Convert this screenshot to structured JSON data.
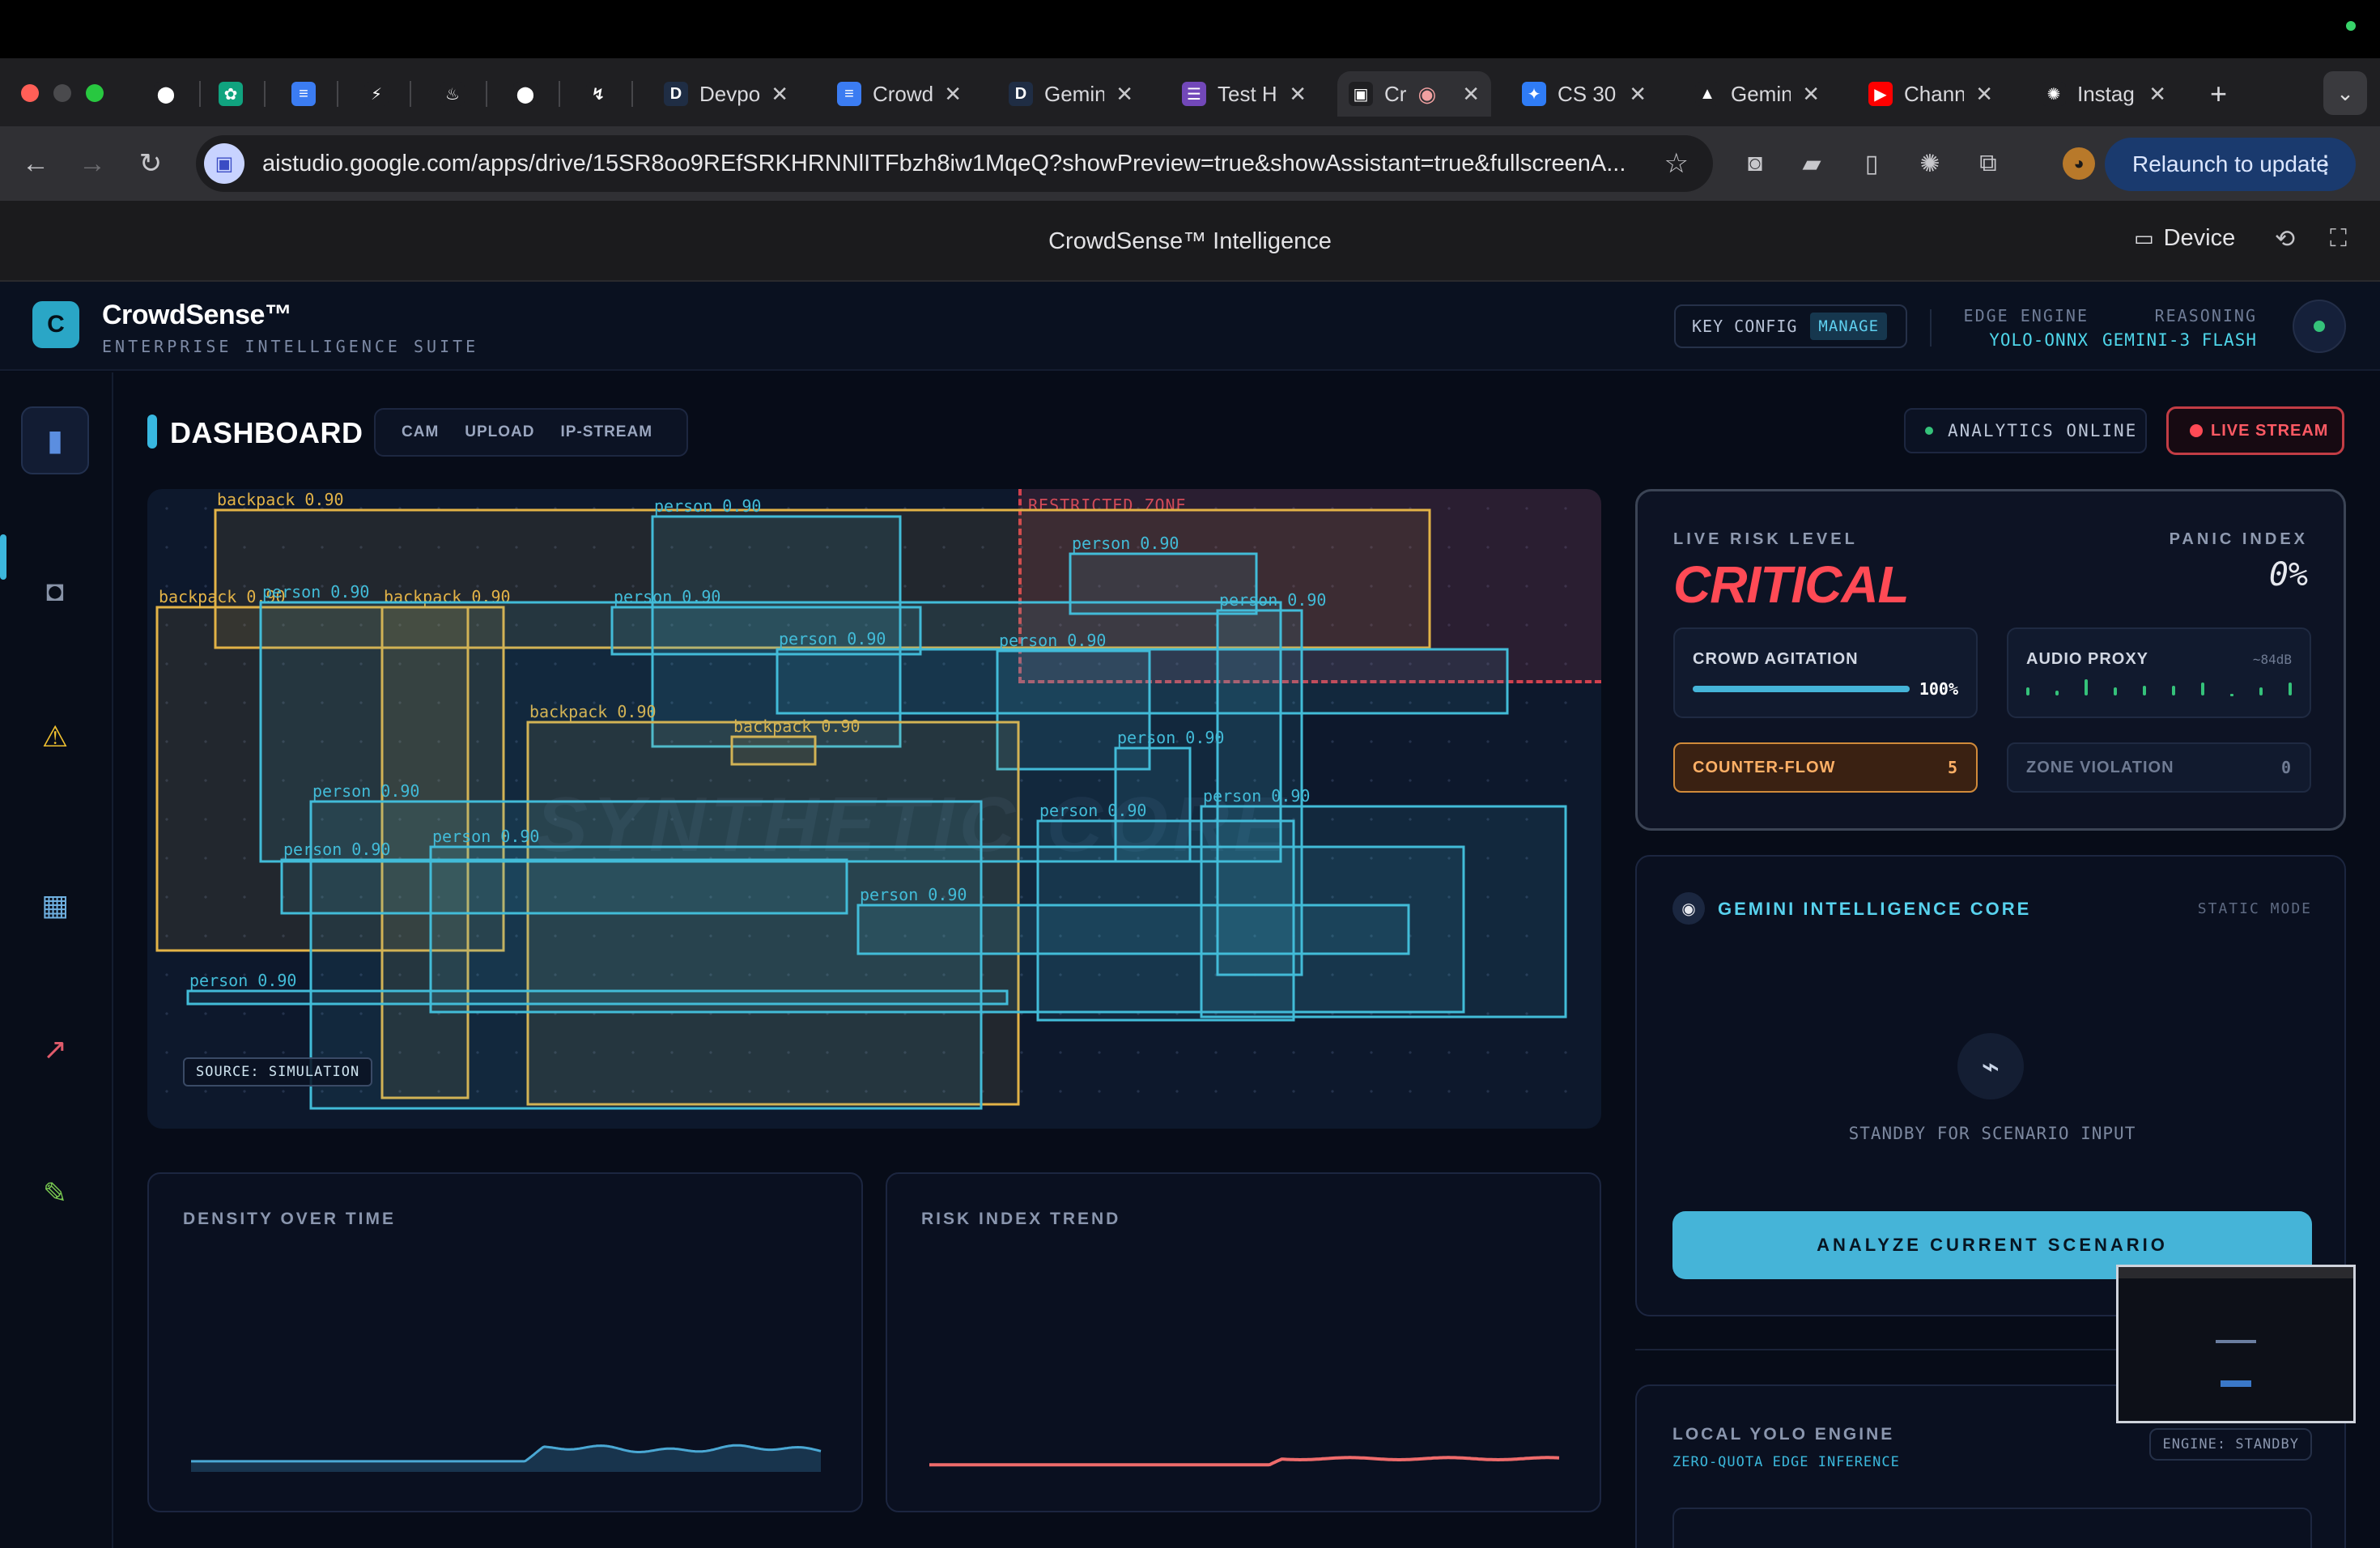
{
  "browser": {
    "tabs": [
      {
        "label": "",
        "icon": "github-icon"
      },
      {
        "label": "",
        "icon": "chatgpt-icon"
      },
      {
        "label": "",
        "icon": "docs-icon"
      },
      {
        "label": "",
        "icon": "bolt-icon"
      },
      {
        "label": "",
        "icon": "firebase-icon"
      },
      {
        "label": "",
        "icon": "github-icon"
      },
      {
        "label": "",
        "icon": "lightning-icon"
      },
      {
        "label": "Devpo",
        "icon": "devpost-icon"
      },
      {
        "label": "Crowd",
        "icon": "docs-icon"
      },
      {
        "label": "Gemin",
        "icon": "devpost-icon"
      },
      {
        "label": "Test H",
        "icon": "forms-icon"
      },
      {
        "label": "Cr",
        "icon": "aistudio-icon"
      },
      {
        "label": "CS 30",
        "icon": "messenger-icon"
      },
      {
        "label": "Gemin",
        "icon": "drive-icon"
      },
      {
        "label": "Chann",
        "icon": "youtube-icon"
      },
      {
        "label": "Instag",
        "icon": "openai-icon"
      }
    ],
    "new_tab_label": "+",
    "url": "aistudio.google.com/apps/drive/15SR8oo9REfSRKHRNNlITFbzh8iw1MqeQ?showPreview=true&showAssistant=true&fullscreenA...",
    "relaunch_label": "Relaunch to update"
  },
  "studio": {
    "title": "CrowdSense™ Intelligence",
    "device_label": "Device"
  },
  "app": {
    "logo_letter": "C",
    "brand": "CrowdSense™",
    "brand_sub": "ENTERPRISE INTELLIGENCE SUITE",
    "key_config": "KEY CONFIG",
    "manage": "MANAGE",
    "edge_engine_label": "EDGE ENGINE",
    "edge_engine_value": "YOLO-ONNX",
    "reasoning_label": "REASONING",
    "reasoning_value": "GEMINI-3 FLASH"
  },
  "sidebar": [
    "bar-chart-icon",
    "film-camera-icon",
    "warning-icon",
    "map-icon",
    "trend-icon",
    "pencil-icon"
  ],
  "dashboard": {
    "title": "DASHBOARD",
    "source_tabs": [
      "CAM",
      "UPLOAD",
      "IP-STREAM"
    ],
    "analytics_status": "ANALYTICS ONLINE",
    "live_stream": "LIVE STREAM",
    "watermark": "SYNTHETIC CORE",
    "restricted_zone": "RESTRICTED ZONE",
    "source_badge": "SOURCE: SIMULATION"
  },
  "detections": [
    {
      "label": "backpack 0.90",
      "cls": "backpack"
    },
    {
      "label": "person 0.90",
      "cls": "person"
    },
    {
      "label": "backpack 0.90",
      "cls": "backpack"
    },
    {
      "label": "backpack 0.90",
      "cls": "backpack"
    },
    {
      "label": "person 0.90",
      "cls": "person"
    },
    {
      "label": "person 0.90",
      "cls": "person"
    },
    {
      "label": "person 0.90",
      "cls": "person"
    },
    {
      "label": "person 0.90",
      "cls": "person"
    },
    {
      "label": "backpack 0.90",
      "cls": "backpack"
    },
    {
      "label": "backpack 0.90",
      "cls": "backpack"
    },
    {
      "label": "person 0.90",
      "cls": "person"
    },
    {
      "label": "person 0.90",
      "cls": "person"
    },
    {
      "label": "person 0.90",
      "cls": "person"
    },
    {
      "label": "person 0.90",
      "cls": "person"
    },
    {
      "label": "person 0.90",
      "cls": "person"
    },
    {
      "label": "person 0.90",
      "cls": "person"
    },
    {
      "label": "person 0.90",
      "cls": "person"
    },
    {
      "label": "person 0.90",
      "cls": "person"
    },
    {
      "label": "person 0.90",
      "cls": "person"
    },
    {
      "label": "person 0.90",
      "cls": "person"
    }
  ],
  "charts": {
    "density_title": "DENSITY OVER TIME",
    "risk_title": "RISK INDEX TREND"
  },
  "chart_data": [
    {
      "type": "area",
      "title": "DENSITY OVER TIME",
      "values": [
        0.06,
        0.06,
        0.06,
        0.06,
        0.06,
        0.06,
        0.06,
        0.06,
        0.06,
        0.06,
        0.06,
        0.06,
        0.06,
        0.06,
        0.06,
        0.06,
        0.06,
        0.06,
        0.06,
        0.06,
        0.06,
        0.06,
        0.06,
        0.06,
        0.06,
        0.06,
        0.06,
        0.06,
        0.06,
        0.06,
        0.06,
        0.06,
        0.06,
        0.06,
        0.06,
        0.06,
        0.06,
        0.06,
        0.06,
        0.06,
        0.06,
        0.06,
        0.06,
        0.06,
        0.06,
        0.06,
        0.06,
        0.06,
        0.06,
        0.06,
        0.06,
        0.06,
        0.06,
        0.06,
        0.06,
        0.06,
        0.06,
        0.06,
        0.06,
        0.06,
        0.06,
        0.06,
        0.06,
        0.06,
        0.06,
        0.06,
        0.06,
        0.06,
        0.06,
        0.06,
        0.06,
        0.06,
        0.06,
        0.06,
        0.06,
        0.06,
        0.06,
        0.06,
        0.06,
        0.06,
        0.06,
        0.06,
        0.06,
        0.06,
        0.06,
        0.06,
        0.06,
        0.06,
        0.06,
        0.06,
        0.06,
        0.06,
        0.06,
        0.06,
        0.06,
        0.06,
        0.06,
        0.06,
        0.06,
        0.06,
        0.06,
        0.06,
        0.06,
        0.06,
        0.06,
        0.06,
        0.06,
        0.06,
        0.06,
        0.06,
        0.06,
        0.06,
        0.06,
        0.06,
        0.06,
        0.06,
        0.06,
        0.06,
        0.06,
        0.06,
        0.06,
        0.06,
        0.06,
        0.06,
        0.06,
        0.06,
        0.06,
        0.06,
        0.06,
        0.06,
        0.06,
        0.06,
        0.06,
        0.06,
        0.06,
        0.06,
        0.06,
        0.06,
        0.06,
        0.06,
        0.06,
        0.06,
        0.06,
        0.06,
        0.06,
        0.06,
        0.06,
        0.06,
        0.06,
        0.06,
        0.06,
        0.06,
        0.06,
        0.06,
        0.06,
        0.06,
        0.06,
        0.06,
        0.06,
        0.06,
        0.06,
        0.06,
        0.06,
        0.06,
        0.06,
        0.06,
        0.06,
        0.06,
        0.06,
        0.06,
        0.06,
        0.06,
        0.06,
        0.06,
        0.06,
        0.06,
        0.06,
        0.06,
        0.06,
        0.06,
        0.06,
        0.06,
        0.06,
        0.06,
        0.06,
        0.06,
        0.06,
        0.06,
        0.06,
        0.06,
        0.06,
        0.06,
        0.06,
        0.06,
        0.06,
        0.06,
        0.06,
        0.06,
        0.06,
        0.06,
        0.06,
        0.06,
        0.06,
        0.06,
        0.06,
        0.06,
        0.06,
        0.06,
        0.06,
        0.06,
        0.06,
        0.06,
        0.06,
        0.06,
        0.06,
        0.06,
        0.06,
        0.06,
        0.06,
        0.06,
        0.06,
        0.06,
        0.06,
        0.06,
        0.06,
        0.06,
        0.06,
        0.06,
        0.06,
        0.06,
        0.06,
        0.06,
        0.06,
        0.06,
        0.06,
        0.06,
        0.06,
        0.06,
        0.06,
        0.06,
        0.06,
        0.06,
        0.06,
        0.06,
        0.06,
        0.06,
        0.06,
        0.06,
        0.06,
        0.06,
        0.06,
        0.06,
        0.06,
        0.06,
        0.06,
        0.06,
        0.06,
        0.06,
        0.06,
        0.06,
        0.06,
        0.06,
        0.06,
        0.06,
        0.06,
        0.06,
        0.06,
        0.06,
        0.06,
        0.06,
        0.06,
        0.06,
        0.06,
        0.06,
        0.06,
        0.06,
        0.06,
        0.06,
        0.06,
        0.06,
        0.06,
        0.06,
        0.06,
        0.06,
        0.06,
        0.06,
        0.06,
        0.06,
        0.06,
        0.06,
        0.06,
        0.06,
        0.06,
        0.06,
        0.06,
        0.06,
        0.06,
        0.06,
        0.06,
        0.06,
        0.06,
        0.06,
        0.06,
        0.06,
        0.06,
        0.06,
        0.06,
        0.06,
        0.06,
        0.06,
        0.06,
        0.06,
        0.06,
        0.06,
        0.06,
        0.06,
        0.06,
        0.06,
        0.06,
        0.06,
        0.06,
        0.06,
        0.06,
        0.06,
        0.06,
        0.06,
        0.06,
        0.06,
        0.06,
        0.06,
        0.06,
        0.06,
        0.06,
        0.06,
        0.06,
        0.06,
        0.06,
        0.06,
        0.06,
        0.06,
        0.06,
        0.06,
        0.06,
        0.06,
        0.06,
        0.06,
        0.06,
        0.06,
        0.06,
        0.06,
        0.06,
        0.06,
        0.06,
        0.06,
        0.06,
        0.06,
        0.06,
        0.06,
        0.06,
        0.06,
        0.06,
        0.06,
        0.06,
        0.06,
        0.06,
        0.06,
        0.06,
        0.06,
        0.06,
        0.06,
        0.06,
        0.06,
        0.06,
        0.06,
        0.06,
        0.06,
        0.06,
        0.06,
        0.06,
        0.06,
        0.06,
        0.06,
        0.06,
        0.06,
        0.06,
        0.06,
        0.06,
        0.06,
        0.06,
        0.06,
        0.06,
        0.06,
        0.06,
        0.06,
        0.06,
        0.06,
        0.06,
        0.06,
        0.06,
        0.06,
        0.06,
        0.06,
        0.06,
        0.06,
        0.06,
        0.06,
        0.06,
        0.06,
        0.06,
        0.06,
        0.06,
        0.06,
        0.06,
        0.06,
        0.06,
        0.06,
        0.06,
        0.06,
        0.06,
        0.06,
        0.06,
        0.06,
        0.06,
        0.06,
        0.06,
        0.06,
        0.06,
        0.06,
        0.06,
        0.06,
        0.06,
        0.06,
        0.06,
        0.06,
        0.06,
        0.06,
        0.06,
        0.06,
        0.06,
        0.06,
        0.06,
        0.06,
        0.06,
        0.06,
        0.06,
        0.06,
        0.06,
        0.06,
        0.06,
        0.06,
        0.06,
        0.06,
        0.06,
        0.06,
        0.06,
        0.06,
        0.06,
        0.06,
        0.06,
        0.06,
        0.06,
        0.06,
        0.06,
        0.06,
        0.06,
        0.06,
        0.06,
        0.06
      ],
      "ylim": [
        0,
        1
      ]
    },
    {
      "type": "line",
      "title": "RISK INDEX TREND",
      "values": [
        0.04,
        0.04,
        0.04,
        0.04,
        0.04,
        0.04,
        0.04,
        0.04,
        0.04,
        0.04,
        0.04,
        0.04,
        0.04,
        0.04,
        0.04,
        0.04,
        0.04,
        0.04,
        0.04,
        0.04,
        0.04,
        0.04,
        0.04,
        0.04,
        0.04,
        0.04,
        0.04,
        0.04,
        0.04,
        0.04,
        0.04,
        0.04,
        0.04,
        0.04,
        0.04,
        0.04,
        0.04,
        0.04,
        0.04,
        0.04,
        0.04,
        0.04,
        0.04,
        0.04,
        0.04,
        0.04,
        0.04,
        0.04,
        0.04,
        0.04,
        0.04,
        0.04,
        0.04,
        0.04,
        0.04,
        0.04,
        0.04,
        0.04,
        0.04,
        0.04,
        0.04,
        0.04,
        0.04,
        0.04,
        0.04,
        0.04,
        0.04,
        0.04,
        0.04,
        0.04,
        0.04,
        0.04,
        0.04,
        0.04,
        0.04,
        0.04,
        0.04,
        0.04,
        0.04,
        0.04,
        0.04,
        0.04,
        0.04,
        0.04,
        0.04,
        0.04,
        0.04,
        0.04,
        0.04,
        0.04,
        0.04,
        0.04,
        0.04,
        0.04,
        0.04,
        0.04,
        0.04,
        0.04,
        0.04,
        0.04,
        0.04,
        0.04,
        0.04,
        0.04,
        0.04,
        0.04,
        0.04,
        0.04,
        0.04,
        0.04,
        0.04,
        0.04,
        0.04,
        0.04,
        0.04,
        0.04,
        0.04,
        0.04,
        0.04,
        0.04,
        0.04,
        0.04,
        0.04,
        0.04,
        0.04,
        0.04,
        0.04,
        0.04,
        0.04,
        0.04,
        0.04,
        0.04,
        0.04,
        0.04,
        0.04,
        0.04,
        0.04,
        0.04,
        0.04,
        0.04,
        0.04,
        0.04,
        0.04,
        0.04,
        0.04,
        0.04,
        0.04,
        0.04,
        0.04,
        0.04,
        0.04,
        0.04,
        0.04,
        0.04,
        0.04,
        0.04,
        0.04,
        0.04,
        0.04,
        0.04,
        0.04,
        0.04,
        0.04,
        0.04,
        0.04,
        0.04,
        0.04,
        0.04,
        0.04,
        0.04,
        0.04,
        0.04,
        0.04,
        0.04,
        0.04,
        0.04,
        0.04,
        0.04,
        0.04,
        0.04,
        0.04,
        0.04,
        0.04,
        0.04,
        0.04,
        0.04,
        0.04,
        0.04,
        0.04,
        0.04,
        0.04,
        0.04,
        0.04,
        0.04,
        0.04,
        0.04,
        0.04,
        0.04,
        0.04,
        0.04,
        0.04,
        0.04,
        0.04,
        0.04,
        0.04,
        0.04,
        0.04,
        0.04,
        0.04,
        0.04,
        0.04,
        0.04,
        0.04,
        0.04,
        0.04,
        0.04,
        0.04,
        0.04,
        0.04,
        0.04,
        0.04,
        0.04,
        0.04,
        0.04,
        0.04,
        0.04,
        0.04,
        0.04,
        0.04,
        0.04,
        0.04,
        0.04,
        0.04,
        0.04,
        0.04,
        0.04,
        0.04,
        0.04,
        0.04,
        0.04,
        0.04,
        0.04,
        0.04,
        0.04,
        0.04,
        0.04,
        0.04,
        0.04,
        0.04,
        0.04,
        0.04,
        0.04,
        0.04,
        0.04,
        0.04,
        0.04,
        0.04,
        0.04,
        0.04,
        0.04,
        0.04,
        0.04,
        0.04,
        0.04,
        0.04,
        0.04,
        0.04,
        0.04,
        0.04,
        0.04,
        0.04,
        0.04,
        0.04,
        0.04,
        0.04,
        0.04,
        0.04,
        0.04,
        0.04,
        0.04,
        0.04,
        0.04,
        0.04,
        0.04,
        0.04,
        0.04,
        0.04,
        0.04,
        0.04,
        0.04,
        0.04,
        0.04,
        0.04,
        0.04,
        0.04,
        0.04,
        0.04,
        0.04,
        0.04,
        0.04,
        0.04,
        0.04,
        0.04,
        0.04,
        0.04,
        0.04,
        0.04,
        0.04,
        0.04,
        0.04,
        0.04,
        0.04,
        0.04,
        0.04,
        0.04,
        0.04,
        0.04,
        0.04,
        0.04,
        0.04,
        0.04,
        0.04,
        0.04,
        0.04,
        0.04,
        0.04,
        0.04,
        0.04,
        0.04,
        0.04,
        0.04,
        0.04,
        0.04,
        0.04,
        0.04,
        0.04,
        0.04,
        0.04,
        0.04,
        0.04,
        0.04,
        0.04,
        0.04,
        0.04,
        0.04,
        0.04,
        0.04,
        0.04,
        0.04,
        0.04,
        0.04,
        0.04,
        0.04,
        0.04,
        0.04,
        0.04,
        0.04,
        0.04,
        0.04,
        0.04,
        0.04,
        0.04,
        0.04,
        0.04,
        0.04,
        0.04,
        0.04,
        0.04,
        0.04,
        0.04,
        0.04,
        0.04,
        0.04,
        0.04,
        0.04,
        0.04,
        0.04,
        0.04,
        0.04,
        0.04,
        0.04,
        0.04,
        0.04,
        0.04,
        0.04,
        0.04,
        0.04,
        0.04,
        0.04,
        0.04,
        0.04,
        0.04,
        0.04,
        0.04,
        0.04,
        0.04,
        0.04,
        0.04,
        0.04,
        0.04,
        0.04,
        0.04,
        0.04,
        0.04,
        0.04,
        0.04,
        0.04,
        0.04,
        0.04,
        0.04,
        0.04,
        0.04,
        0.04,
        0.04,
        0.04,
        0.04,
        0.04,
        0.04,
        0.04,
        0.04,
        0.04,
        0.04,
        0.04,
        0.04,
        0.04,
        0.04,
        0.04,
        0.04,
        0.04,
        0.04
      ],
      "ylim": [
        0,
        1
      ]
    }
  ],
  "risk": {
    "live_risk_label": "LIVE RISK LEVEL",
    "level": "CRITICAL",
    "panic_label": "PANIC INDEX",
    "panic_value": "0%",
    "agitation_label": "CROWD AGITATION",
    "agitation_value": "100%",
    "agitation_fraction": 1.0,
    "audio_label": "AUDIO PROXY",
    "audio_value": "~84dB",
    "counterflow_label": "COUNTER-FLOW",
    "counterflow_value": "5",
    "zone_label": "ZONE VIOLATION",
    "zone_value": "0",
    "accent": "#ff4a55"
  },
  "gemini": {
    "title": "GEMINI INTELLIGENCE CORE",
    "mode": "STATIC MODE",
    "standby": "STANDBY FOR SCENARIO INPUT",
    "analyze_label": "ANALYZE CURRENT SCENARIO"
  },
  "yolo": {
    "title": "LOCAL YOLO ENGINE",
    "subtitle": "ZERO-QUOTA EDGE INFERENCE",
    "badge": "ENGINE: STANDBY"
  }
}
